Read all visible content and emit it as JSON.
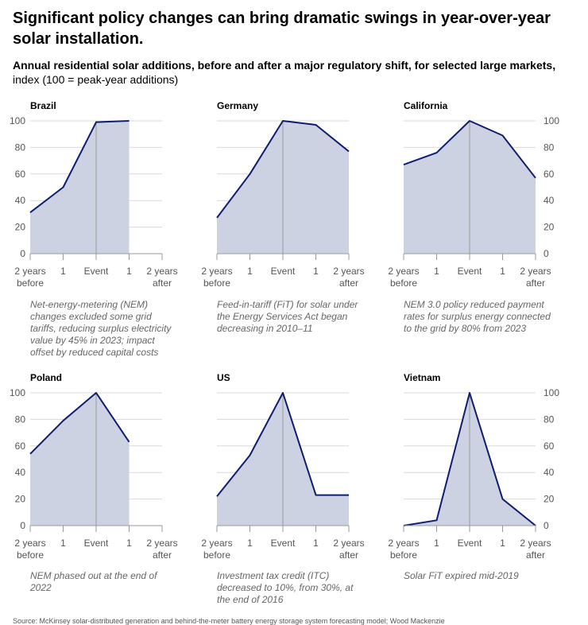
{
  "header": {
    "title": "Significant policy changes can bring dramatic swings in year-over-year solar installation.",
    "subtitle_bold": "Annual residential solar additions, before and after a major regulatory shift, for selected large markets,",
    "subtitle_rest": " index (100 = peak-year additions)"
  },
  "footer": {
    "source": "Source: McKinsey solar-distributed generation and behind-the-meter battery energy storage system forecasting model; Wood Mackenzie"
  },
  "colors": {
    "line": "#0f1d6e",
    "fill": "#cdd2e3",
    "grid": "#d9d9d9",
    "axis_text": "#555555"
  },
  "chart_data": [
    {
      "type": "area",
      "title": "Brazil",
      "categories": [
        "2 years before",
        "1",
        "Event",
        "1",
        "2 years after"
      ],
      "values": [
        31,
        50,
        99,
        100,
        null
      ],
      "ylim": [
        0,
        100
      ],
      "yticks": [
        0,
        20,
        40,
        60,
        80,
        100
      ],
      "yaxis_side": "left",
      "note": "Net-energy-metering (NEM) changes excluded some grid tariffs, reducing surplus electricity value by 45% in 2023; impact offset by reduced capital costs"
    },
    {
      "type": "area",
      "title": "Germany",
      "categories": [
        "2 years before",
        "1",
        "Event",
        "1",
        "2 years after"
      ],
      "values": [
        27,
        60,
        100,
        97,
        77
      ],
      "ylim": [
        0,
        100
      ],
      "yticks": [
        0,
        20,
        40,
        60,
        80,
        100
      ],
      "yaxis_side": "none",
      "note": "Feed-in-tariff (FiT) for solar under the Energy Services Act began decreasing in 2010–11"
    },
    {
      "type": "area",
      "title": "California",
      "categories": [
        "2 years before",
        "1",
        "Event",
        "1",
        "2 years after"
      ],
      "values": [
        67,
        76,
        100,
        89,
        57
      ],
      "ylim": [
        0,
        100
      ],
      "yticks": [
        0,
        20,
        40,
        60,
        80,
        100
      ],
      "yaxis_side": "right",
      "note": "NEM 3.0 policy reduced payment rates for surplus energy connected to the grid by 80% from 2023"
    },
    {
      "type": "area",
      "title": "Poland",
      "categories": [
        "2 years before",
        "1",
        "Event",
        "1",
        "2 years after"
      ],
      "values": [
        54,
        79,
        100,
        63,
        null
      ],
      "ylim": [
        0,
        100
      ],
      "yticks": [
        0,
        20,
        40,
        60,
        80,
        100
      ],
      "yaxis_side": "left",
      "note": "NEM phased out at the end of 2022"
    },
    {
      "type": "area",
      "title": "US",
      "categories": [
        "2 years before",
        "1",
        "Event",
        "1",
        "2 years after"
      ],
      "values": [
        22,
        53,
        100,
        23,
        23
      ],
      "ylim": [
        0,
        100
      ],
      "yticks": [
        0,
        20,
        40,
        60,
        80,
        100
      ],
      "yaxis_side": "none",
      "note": "Investment tax credit (ITC) decreased to 10%, from 30%, at the end of 2016"
    },
    {
      "type": "area",
      "title": "Vietnam",
      "categories": [
        "2 years before",
        "1",
        "Event",
        "1",
        "2 years after"
      ],
      "values": [
        0,
        4,
        100,
        20,
        0
      ],
      "ylim": [
        0,
        100
      ],
      "yticks": [
        0,
        20,
        40,
        60,
        80,
        100
      ],
      "yaxis_side": "right",
      "note": "Solar FiT expired mid-2019"
    }
  ]
}
